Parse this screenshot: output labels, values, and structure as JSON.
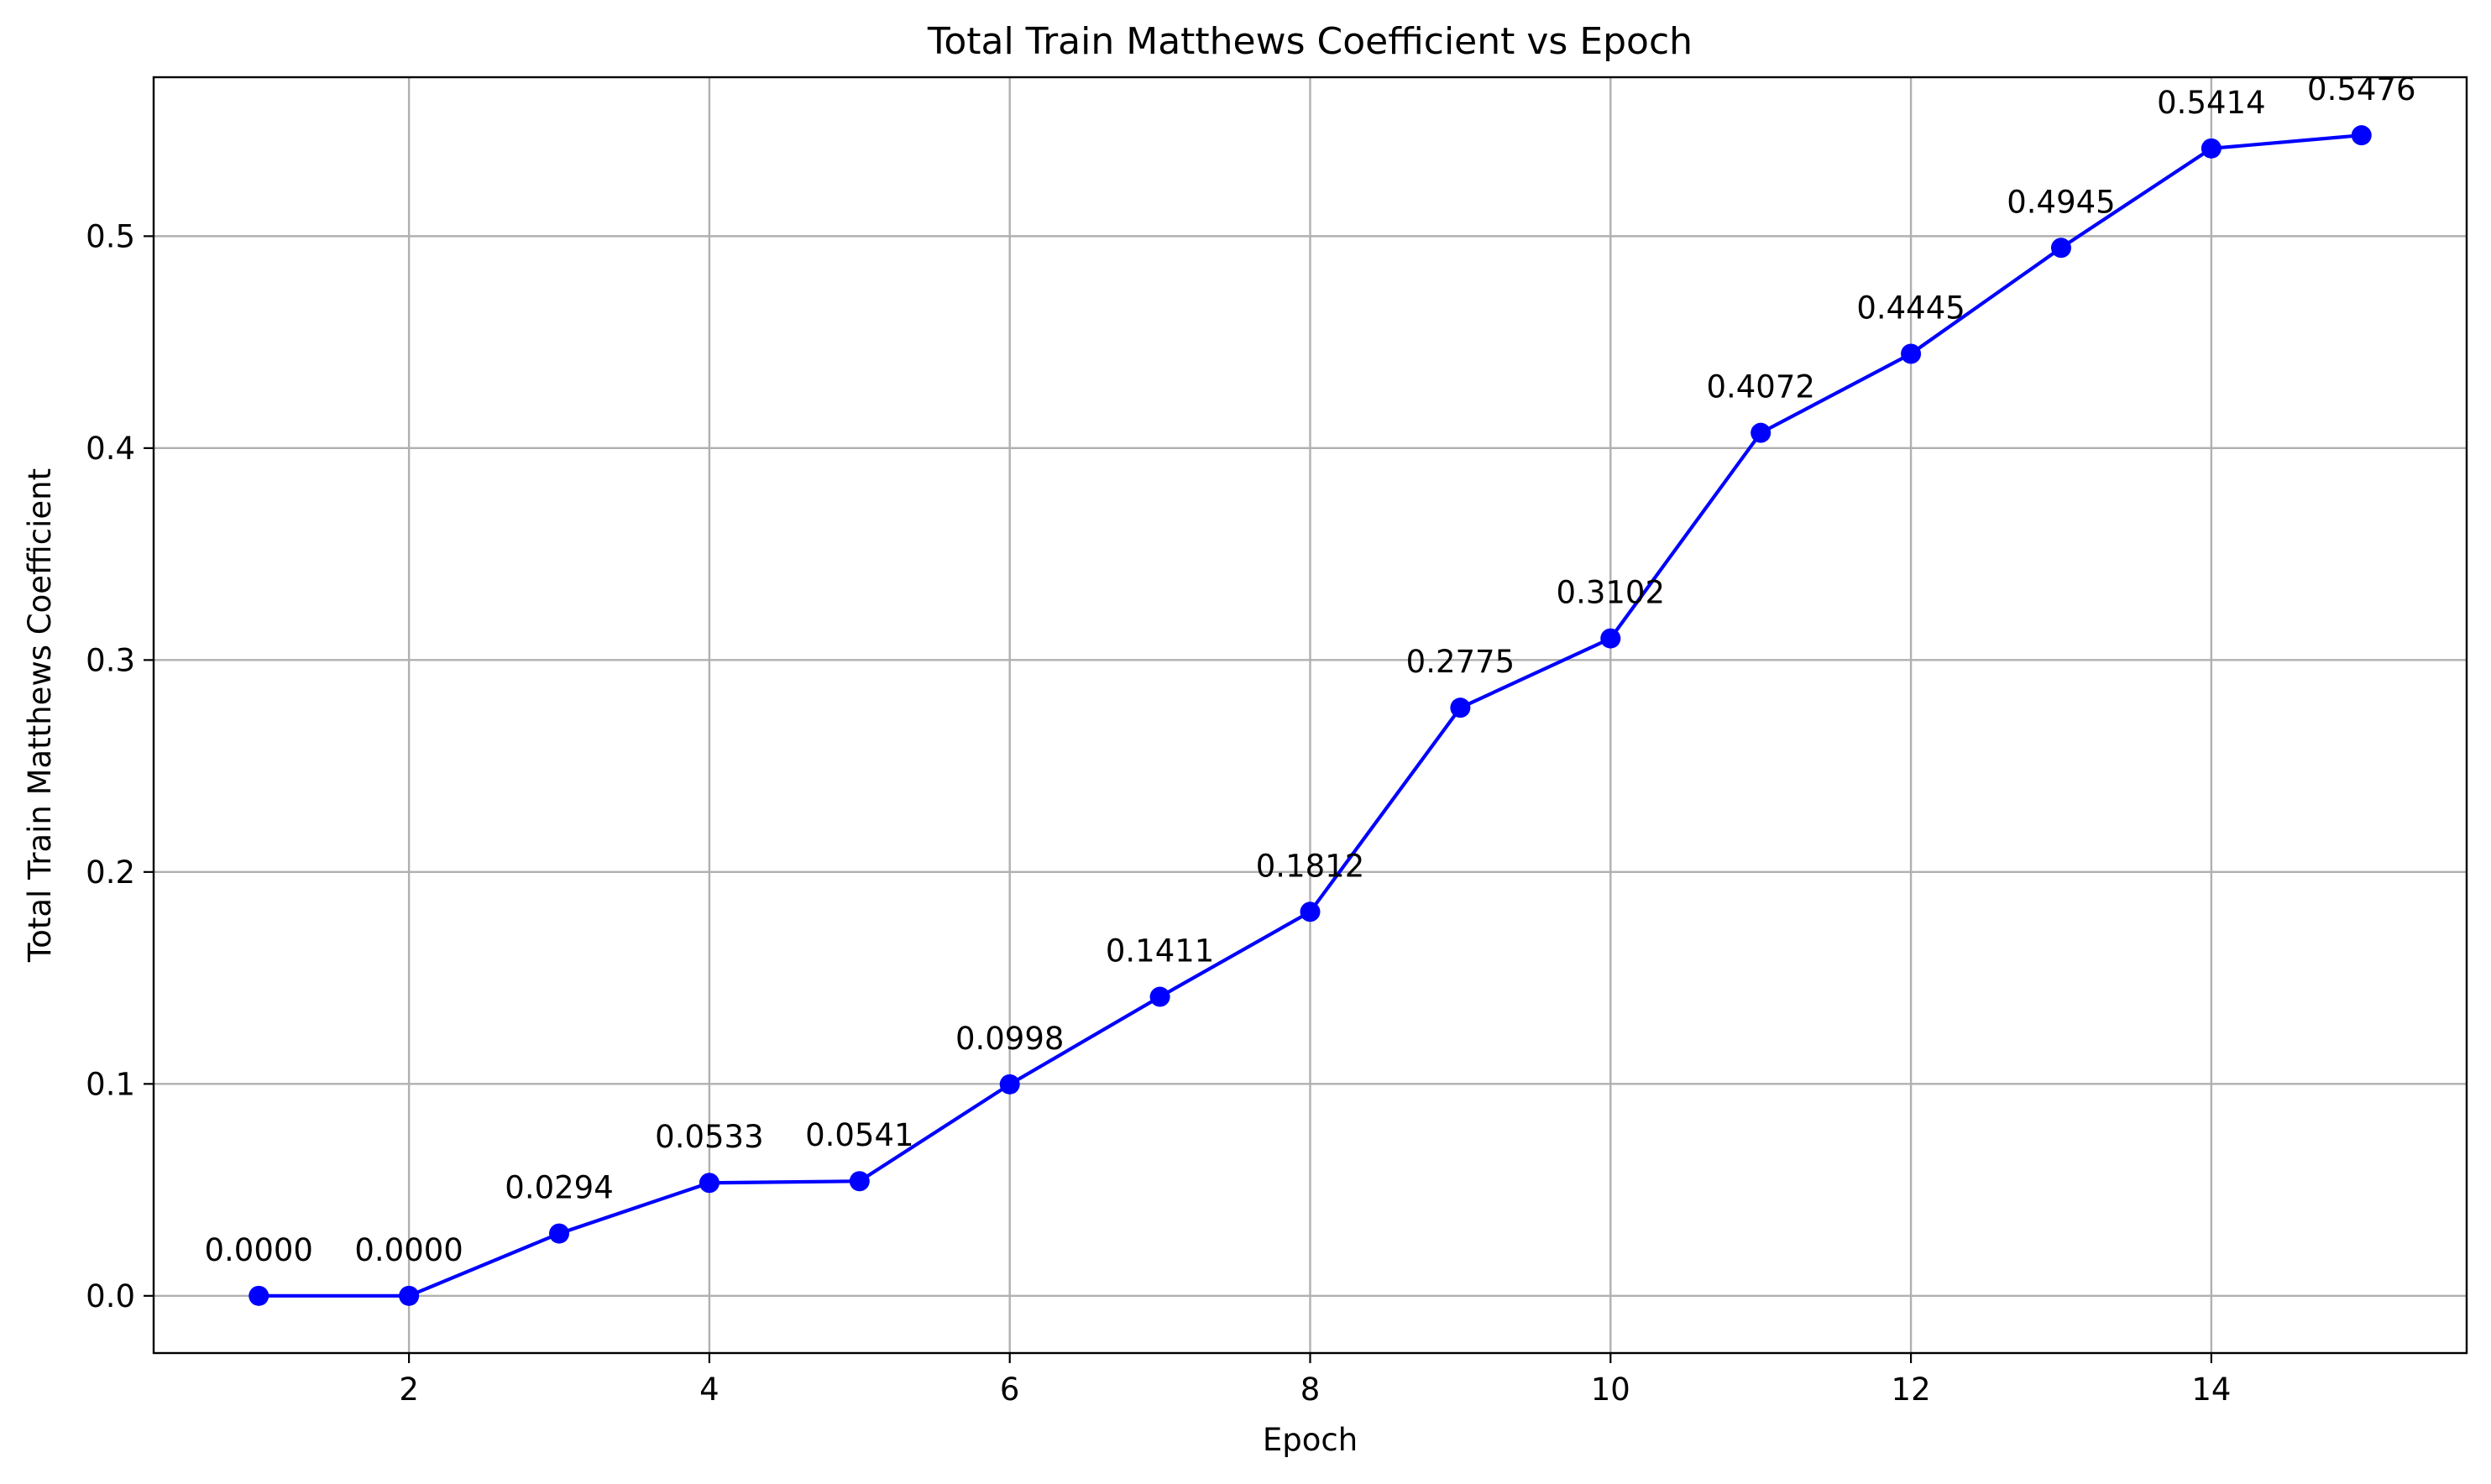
{
  "chart_data": {
    "type": "line",
    "title": "Total Train Matthews Coefficient vs Epoch",
    "xlabel": "Epoch",
    "ylabel": "Total Train Matthews Coefficient",
    "x": [
      1,
      2,
      3,
      4,
      5,
      6,
      7,
      8,
      9,
      10,
      11,
      12,
      13,
      14,
      15
    ],
    "series": [
      {
        "values": [
          0.0,
          0.0,
          0.0294,
          0.0533,
          0.0541,
          0.0998,
          0.1411,
          0.1812,
          0.2775,
          0.3102,
          0.4072,
          0.4445,
          0.4945,
          0.5414,
          0.5476
        ],
        "color": "#0000ff",
        "marker": "circle"
      }
    ],
    "data_labels": [
      "0.0000",
      "0.0000",
      "0.0294",
      "0.0533",
      "0.0541",
      "0.0998",
      "0.1411",
      "0.1812",
      "0.2775",
      "0.3102",
      "0.4072",
      "0.4445",
      "0.4945",
      "0.5414",
      "0.5476"
    ],
    "xlim": [
      0.3,
      15.7
    ],
    "ylim": [
      -0.027,
      0.575
    ],
    "xticks": [
      2,
      4,
      6,
      8,
      10,
      12,
      14
    ],
    "xtick_labels": [
      "2",
      "4",
      "6",
      "8",
      "10",
      "12",
      "14"
    ],
    "yticks": [
      0.0,
      0.1,
      0.2,
      0.3,
      0.4,
      0.5
    ],
    "ytick_labels": [
      "0.0",
      "0.1",
      "0.2",
      "0.3",
      "0.4",
      "0.5"
    ],
    "grid": true,
    "legend": "none"
  }
}
